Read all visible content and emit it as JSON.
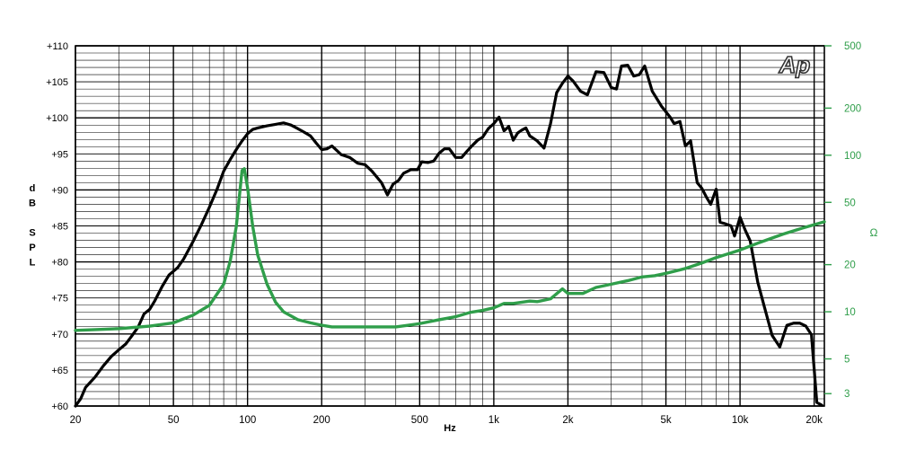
{
  "chart_data": {
    "type": "line",
    "xlabel": "Hz",
    "ylabel_left": [
      "d",
      "B",
      "",
      "S",
      "P",
      "L"
    ],
    "ylabel_right": "Ω",
    "logo": "Ap",
    "x_scale": "log",
    "xlim": [
      20,
      22000
    ],
    "ylim_left": [
      60,
      110
    ],
    "ylim_right": [
      2.5,
      500
    ],
    "y_right_scale": "log",
    "grid": true,
    "x_ticks": [
      {
        "v": 20,
        "label": "20"
      },
      {
        "v": 50,
        "label": "50"
      },
      {
        "v": 100,
        "label": "100"
      },
      {
        "v": 200,
        "label": "200"
      },
      {
        "v": 500,
        "label": "500"
      },
      {
        "v": 1000,
        "label": "1k"
      },
      {
        "v": 2000,
        "label": "2k"
      },
      {
        "v": 5000,
        "label": "5k"
      },
      {
        "v": 10000,
        "label": "10k"
      },
      {
        "v": 20000,
        "label": "20k"
      }
    ],
    "y_left_ticks": [
      {
        "v": 60,
        "label": "+60"
      },
      {
        "v": 65,
        "label": "+65"
      },
      {
        "v": 70,
        "label": "+70"
      },
      {
        "v": 75,
        "label": "+75"
      },
      {
        "v": 80,
        "label": "+80"
      },
      {
        "v": 85,
        "label": "+85"
      },
      {
        "v": 90,
        "label": "+90"
      },
      {
        "v": 95,
        "label": "+95"
      },
      {
        "v": 100,
        "label": "+100"
      },
      {
        "v": 105,
        "label": "+105"
      },
      {
        "v": 110,
        "label": "+110"
      }
    ],
    "y_right_ticks": [
      {
        "v": 3,
        "label": "3"
      },
      {
        "v": 5,
        "label": "5"
      },
      {
        "v": 10,
        "label": "10"
      },
      {
        "v": 20,
        "label": "20"
      },
      {
        "v": 50,
        "label": "50"
      },
      {
        "v": 100,
        "label": "100"
      },
      {
        "v": 200,
        "label": "200"
      },
      {
        "v": 500,
        "label": "500"
      }
    ],
    "series": [
      {
        "axis": "left",
        "color": "#000000",
        "points": [
          [
            20,
            60
          ],
          [
            21,
            61
          ],
          [
            22,
            62.6
          ],
          [
            24,
            64
          ],
          [
            26,
            65.6
          ],
          [
            28,
            66.9
          ],
          [
            30,
            67.8
          ],
          [
            32,
            68.6
          ],
          [
            34,
            69.8
          ],
          [
            36,
            71
          ],
          [
            38,
            72.8
          ],
          [
            40,
            73.4
          ],
          [
            42,
            74.6
          ],
          [
            45,
            76.6
          ],
          [
            48,
            78.2
          ],
          [
            52,
            79.2
          ],
          [
            55,
            80.4
          ],
          [
            60,
            82.8
          ],
          [
            65,
            85.2
          ],
          [
            70,
            87.6
          ],
          [
            75,
            90
          ],
          [
            80,
            92.6
          ],
          [
            85,
            94.2
          ],
          [
            90,
            95.6
          ],
          [
            95,
            96.8
          ],
          [
            100,
            97.8
          ],
          [
            105,
            98.4
          ],
          [
            110,
            98.6
          ],
          [
            120,
            98.9
          ],
          [
            130,
            99.1
          ],
          [
            140,
            99.3
          ],
          [
            150,
            99
          ],
          [
            160,
            98.5
          ],
          [
            170,
            98
          ],
          [
            180,
            97.5
          ],
          [
            190,
            96.5
          ],
          [
            200,
            95.6
          ],
          [
            210,
            95.7
          ],
          [
            220,
            96.1
          ],
          [
            230,
            95.5
          ],
          [
            240,
            94.9
          ],
          [
            260,
            94.5
          ],
          [
            280,
            93.7
          ],
          [
            300,
            93.5
          ],
          [
            320,
            92.6
          ],
          [
            350,
            91
          ],
          [
            370,
            89.3
          ],
          [
            390,
            90.8
          ],
          [
            410,
            91.3
          ],
          [
            430,
            92.3
          ],
          [
            460,
            92.8
          ],
          [
            490,
            92.8
          ],
          [
            510,
            93.9
          ],
          [
            540,
            93.8
          ],
          [
            570,
            94
          ],
          [
            600,
            95.1
          ],
          [
            630,
            95.7
          ],
          [
            660,
            95.7
          ],
          [
            700,
            94.5
          ],
          [
            740,
            94.5
          ],
          [
            780,
            95.4
          ],
          [
            820,
            96.2
          ],
          [
            860,
            96.9
          ],
          [
            900,
            97.3
          ],
          [
            950,
            98.5
          ],
          [
            1000,
            99.2
          ],
          [
            1050,
            100.1
          ],
          [
            1100,
            98.2
          ],
          [
            1150,
            98.8
          ],
          [
            1200,
            96.9
          ],
          [
            1250,
            97.9
          ],
          [
            1300,
            98.3
          ],
          [
            1350,
            98.6
          ],
          [
            1400,
            97.5
          ],
          [
            1500,
            96.8
          ],
          [
            1600,
            95.8
          ],
          [
            1700,
            99.2
          ],
          [
            1800,
            103.5
          ],
          [
            1900,
            104.8
          ],
          [
            2000,
            105.8
          ],
          [
            2100,
            105.1
          ],
          [
            2250,
            103.7
          ],
          [
            2400,
            103.2
          ],
          [
            2600,
            106.4
          ],
          [
            2800,
            106.3
          ],
          [
            3000,
            104.2
          ],
          [
            3150,
            104
          ],
          [
            3300,
            107.2
          ],
          [
            3500,
            107.3
          ],
          [
            3700,
            105.8
          ],
          [
            3900,
            106
          ],
          [
            4100,
            107.2
          ],
          [
            4400,
            103.7
          ],
          [
            4800,
            101.6
          ],
          [
            5200,
            100.1
          ],
          [
            5400,
            99.2
          ],
          [
            5700,
            99.5
          ],
          [
            6000,
            96.1
          ],
          [
            6300,
            96.8
          ],
          [
            6700,
            91
          ],
          [
            7000,
            90.2
          ],
          [
            7300,
            89
          ],
          [
            7600,
            88
          ],
          [
            8000,
            90.1
          ],
          [
            8300,
            85.5
          ],
          [
            8700,
            85.3
          ],
          [
            9200,
            85
          ],
          [
            9500,
            83.6
          ],
          [
            10000,
            86.2
          ],
          [
            10500,
            84.4
          ],
          [
            11000,
            82.9
          ],
          [
            11800,
            77.2
          ],
          [
            12500,
            74
          ],
          [
            13500,
            69.8
          ],
          [
            14500,
            68.2
          ],
          [
            15500,
            71.2
          ],
          [
            16500,
            71.5
          ],
          [
            17500,
            71.5
          ],
          [
            18500,
            71.1
          ],
          [
            19500,
            69.9
          ],
          [
            20500,
            60.5
          ],
          [
            21500,
            60.1
          ]
        ]
      },
      {
        "axis": "right",
        "color": "#2f9e4a",
        "points": [
          [
            20,
            7.6
          ],
          [
            30,
            7.8
          ],
          [
            40,
            8.1
          ],
          [
            50,
            8.5
          ],
          [
            60,
            9.5
          ],
          [
            70,
            11
          ],
          [
            80,
            15
          ],
          [
            85,
            21
          ],
          [
            90,
            35
          ],
          [
            95,
            80
          ],
          [
            97,
            82
          ],
          [
            100,
            62
          ],
          [
            105,
            35
          ],
          [
            110,
            23
          ],
          [
            120,
            15
          ],
          [
            130,
            11.5
          ],
          [
            140,
            10
          ],
          [
            160,
            8.9
          ],
          [
            180,
            8.5
          ],
          [
            200,
            8.2
          ],
          [
            220,
            8
          ],
          [
            300,
            8
          ],
          [
            400,
            8
          ],
          [
            450,
            8.2
          ],
          [
            500,
            8.4
          ],
          [
            600,
            8.9
          ],
          [
            700,
            9.3
          ],
          [
            800,
            9.9
          ],
          [
            900,
            10.2
          ],
          [
            1000,
            10.6
          ],
          [
            1100,
            11.3
          ],
          [
            1200,
            11.3
          ],
          [
            1400,
            11.7
          ],
          [
            1500,
            11.6
          ],
          [
            1700,
            12.1
          ],
          [
            1900,
            14
          ],
          [
            2000,
            13.1
          ],
          [
            2300,
            13.1
          ],
          [
            2600,
            14.3
          ],
          [
            3000,
            15
          ],
          [
            3500,
            15.8
          ],
          [
            4000,
            16.7
          ],
          [
            4500,
            17
          ],
          [
            5000,
            17.6
          ],
          [
            6000,
            18.9
          ],
          [
            7000,
            20.5
          ],
          [
            8000,
            22.2
          ],
          [
            10000,
            24.8
          ],
          [
            12000,
            27.7
          ],
          [
            15000,
            31.4
          ],
          [
            18000,
            34.3
          ],
          [
            22000,
            37.6
          ]
        ]
      }
    ]
  }
}
